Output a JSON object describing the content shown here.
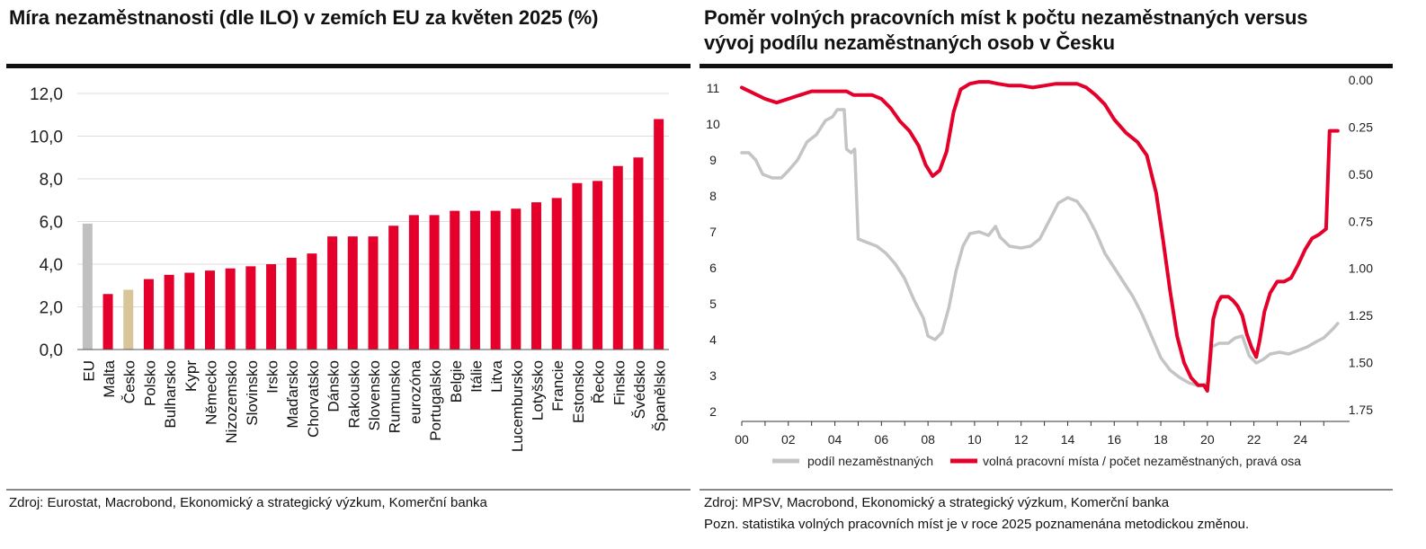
{
  "left": {
    "title": "Míra  nezaměstnanosti (dle ILO) v zemích EU za květen 2025 (%)",
    "source": "Zdroj: Eurostat, Macrobond, Ekonomický a strategický výzkum, Komerční banka",
    "chart_data": {
      "type": "bar",
      "title": "Míra  nezaměstnanosti (dle ILO) v zemích EU za květen 2025 (%)",
      "categories": [
        "EU",
        "Malta",
        "Česko",
        "Polsko",
        "Bulharsko",
        "Kypr",
        "Německo",
        "Nizozemsko",
        "Slovinsko",
        "Irsko",
        "Maďarsko",
        "Chorvatsko",
        "Dánsko",
        "Rakousko",
        "Slovensko",
        "Rumunsko",
        "eurozóna",
        "Portugalsko",
        "Belgie",
        "Itálie",
        "Litva",
        "Lucembursko",
        "Lotyšsko",
        "Francie",
        "Estonsko",
        "Řecko",
        "Finsko",
        "Švédsko",
        "Španělsko"
      ],
      "values": [
        5.9,
        2.6,
        2.8,
        3.3,
        3.5,
        3.6,
        3.7,
        3.8,
        3.9,
        4.0,
        4.3,
        4.5,
        5.3,
        5.3,
        5.3,
        5.8,
        6.3,
        6.3,
        6.5,
        6.5,
        6.5,
        6.6,
        6.9,
        7.1,
        7.8,
        7.9,
        8.6,
        9.0,
        10.8
      ],
      "colors": [
        "#c0c0c0",
        "#e4002b",
        "#d8c59a",
        "#e4002b",
        "#e4002b",
        "#e4002b",
        "#e4002b",
        "#e4002b",
        "#e4002b",
        "#e4002b",
        "#e4002b",
        "#e4002b",
        "#e4002b",
        "#e4002b",
        "#e4002b",
        "#e4002b",
        "#e4002b",
        "#e4002b",
        "#e4002b",
        "#e4002b",
        "#e4002b",
        "#e4002b",
        "#e4002b",
        "#e4002b",
        "#e4002b",
        "#e4002b",
        "#e4002b",
        "#e4002b",
        "#e4002b"
      ],
      "ylim": [
        0,
        12
      ],
      "yticks": [
        "0,0",
        "2,0",
        "4,0",
        "6,0",
        "8,0",
        "10,0",
        "12,0"
      ],
      "grid": true
    }
  },
  "right": {
    "title": "Poměr volných pracovních míst k počtu nezaměstnaných versus vývoj podílu nezaměstnaných osob v Česku",
    "title_line1": "Poměr volných pracovních míst k počtu nezaměstnaných versus",
    "title_line2": "vývoj podílu nezaměstnaných osob v Česku",
    "source": "Zdroj: MPSV, Macrobond, Ekonomický a strategický výzkum, Komerční banka",
    "note": "Pozn. statistika volných pracovních míst je v roce 2025 poznamenána metodickou změnou.",
    "chart_data": {
      "type": "line",
      "x_range": [
        2000,
        2025.8
      ],
      "xticks": [
        "00",
        "02",
        "04",
        "06",
        "08",
        "10",
        "12",
        "14",
        "16",
        "18",
        "20",
        "22",
        "24"
      ],
      "y_left": {
        "min": 2,
        "max": 11,
        "ticks": [
          "2",
          "3",
          "4",
          "5",
          "6",
          "7",
          "8",
          "9",
          "10",
          "11"
        ]
      },
      "y_right": {
        "min": 0,
        "max": 1.75,
        "inverted": true,
        "ticks": [
          "0.00",
          "0.25",
          "0.50",
          "0.75",
          "1.00",
          "1.25",
          "1.50",
          "1.75"
        ]
      },
      "grid": false,
      "legend_position": "bottom",
      "series": [
        {
          "name": "podíl nezaměstnaných",
          "axis": "left",
          "color": "#c4c4c4",
          "points": [
            [
              2000.0,
              9.2
            ],
            [
              2000.3,
              9.2
            ],
            [
              2000.6,
              9.0
            ],
            [
              2000.9,
              8.6
            ],
            [
              2001.3,
              8.5
            ],
            [
              2001.7,
              8.5
            ],
            [
              2002.0,
              8.7
            ],
            [
              2002.4,
              9.0
            ],
            [
              2002.8,
              9.5
            ],
            [
              2003.2,
              9.7
            ],
            [
              2003.6,
              10.1
            ],
            [
              2003.9,
              10.2
            ],
            [
              2004.1,
              10.4
            ],
            [
              2004.4,
              10.4
            ],
            [
              2004.5,
              9.3
            ],
            [
              2004.7,
              9.2
            ],
            [
              2004.85,
              9.3
            ],
            [
              2005.0,
              6.8
            ],
            [
              2005.4,
              6.7
            ],
            [
              2005.8,
              6.6
            ],
            [
              2006.2,
              6.4
            ],
            [
              2006.6,
              6.1
            ],
            [
              2007.0,
              5.7
            ],
            [
              2007.4,
              5.1
            ],
            [
              2007.8,
              4.6
            ],
            [
              2008.0,
              4.1
            ],
            [
              2008.3,
              4.0
            ],
            [
              2008.6,
              4.2
            ],
            [
              2008.9,
              4.9
            ],
            [
              2009.2,
              5.9
            ],
            [
              2009.5,
              6.6
            ],
            [
              2009.8,
              6.95
            ],
            [
              2010.2,
              7.0
            ],
            [
              2010.6,
              6.9
            ],
            [
              2010.9,
              7.15
            ],
            [
              2011.1,
              6.85
            ],
            [
              2011.5,
              6.6
            ],
            [
              2012.0,
              6.55
            ],
            [
              2012.4,
              6.6
            ],
            [
              2012.8,
              6.8
            ],
            [
              2013.2,
              7.3
            ],
            [
              2013.6,
              7.8
            ],
            [
              2014.0,
              7.95
            ],
            [
              2014.4,
              7.85
            ],
            [
              2014.8,
              7.5
            ],
            [
              2015.2,
              7.0
            ],
            [
              2015.6,
              6.4
            ],
            [
              2016.0,
              6.0
            ],
            [
              2016.4,
              5.6
            ],
            [
              2016.8,
              5.2
            ],
            [
              2017.2,
              4.7
            ],
            [
              2017.6,
              4.1
            ],
            [
              2018.0,
              3.5
            ],
            [
              2018.4,
              3.15
            ],
            [
              2018.8,
              2.95
            ],
            [
              2019.2,
              2.8
            ],
            [
              2019.6,
              2.72
            ],
            [
              2019.9,
              2.75
            ],
            [
              2020.05,
              2.8
            ],
            [
              2020.2,
              3.8
            ],
            [
              2020.5,
              3.9
            ],
            [
              2020.9,
              3.9
            ],
            [
              2021.2,
              4.05
            ],
            [
              2021.5,
              4.1
            ],
            [
              2021.8,
              3.55
            ],
            [
              2022.1,
              3.35
            ],
            [
              2022.4,
              3.45
            ],
            [
              2022.7,
              3.6
            ],
            [
              2023.1,
              3.65
            ],
            [
              2023.5,
              3.6
            ],
            [
              2023.9,
              3.7
            ],
            [
              2024.3,
              3.8
            ],
            [
              2024.7,
              3.95
            ],
            [
              2025.0,
              4.05
            ],
            [
              2025.4,
              4.3
            ],
            [
              2025.6,
              4.45
            ]
          ]
        },
        {
          "name": "volná pracovní místa / počet nezaměstnaných, pravá osa",
          "axis": "right",
          "color": "#e4002b",
          "points": [
            [
              2000.0,
              0.04
            ],
            [
              2000.5,
              0.07
            ],
            [
              2001.0,
              0.1
            ],
            [
              2001.5,
              0.12
            ],
            [
              2002.0,
              0.1
            ],
            [
              2002.5,
              0.08
            ],
            [
              2003.0,
              0.06
            ],
            [
              2003.5,
              0.06
            ],
            [
              2004.0,
              0.06
            ],
            [
              2004.5,
              0.06
            ],
            [
              2004.8,
              0.08
            ],
            [
              2005.2,
              0.08
            ],
            [
              2005.6,
              0.08
            ],
            [
              2006.0,
              0.1
            ],
            [
              2006.4,
              0.15
            ],
            [
              2006.8,
              0.22
            ],
            [
              2007.2,
              0.27
            ],
            [
              2007.6,
              0.35
            ],
            [
              2007.9,
              0.45
            ],
            [
              2008.2,
              0.51
            ],
            [
              2008.5,
              0.48
            ],
            [
              2008.8,
              0.38
            ],
            [
              2009.1,
              0.17
            ],
            [
              2009.4,
              0.05
            ],
            [
              2009.8,
              0.02
            ],
            [
              2010.2,
              0.01
            ],
            [
              2010.6,
              0.01
            ],
            [
              2011.0,
              0.02
            ],
            [
              2011.5,
              0.03
            ],
            [
              2012.0,
              0.03
            ],
            [
              2012.5,
              0.04
            ],
            [
              2013.0,
              0.03
            ],
            [
              2013.5,
              0.02
            ],
            [
              2014.0,
              0.02
            ],
            [
              2014.4,
              0.02
            ],
            [
              2014.8,
              0.04
            ],
            [
              2015.2,
              0.08
            ],
            [
              2015.6,
              0.13
            ],
            [
              2016.0,
              0.21
            ],
            [
              2016.5,
              0.28
            ],
            [
              2017.0,
              0.33
            ],
            [
              2017.4,
              0.4
            ],
            [
              2017.8,
              0.6
            ],
            [
              2018.1,
              0.85
            ],
            [
              2018.4,
              1.12
            ],
            [
              2018.7,
              1.36
            ],
            [
              2019.0,
              1.5
            ],
            [
              2019.3,
              1.58
            ],
            [
              2019.6,
              1.62
            ],
            [
              2019.85,
              1.62
            ],
            [
              2020.0,
              1.65
            ],
            [
              2020.1,
              1.5
            ],
            [
              2020.25,
              1.27
            ],
            [
              2020.45,
              1.18
            ],
            [
              2020.6,
              1.15
            ],
            [
              2020.9,
              1.15
            ],
            [
              2021.1,
              1.17
            ],
            [
              2021.3,
              1.2
            ],
            [
              2021.5,
              1.25
            ],
            [
              2021.7,
              1.35
            ],
            [
              2021.9,
              1.42
            ],
            [
              2022.1,
              1.47
            ],
            [
              2022.25,
              1.38
            ],
            [
              2022.45,
              1.23
            ],
            [
              2022.7,
              1.13
            ],
            [
              2023.0,
              1.07
            ],
            [
              2023.3,
              1.07
            ],
            [
              2023.6,
              1.05
            ],
            [
              2023.9,
              0.98
            ],
            [
              2024.2,
              0.9
            ],
            [
              2024.5,
              0.84
            ],
            [
              2024.8,
              0.82
            ],
            [
              2025.1,
              0.79
            ],
            [
              2025.25,
              0.27
            ],
            [
              2025.45,
              0.27
            ],
            [
              2025.6,
              0.27
            ]
          ]
        }
      ]
    }
  }
}
